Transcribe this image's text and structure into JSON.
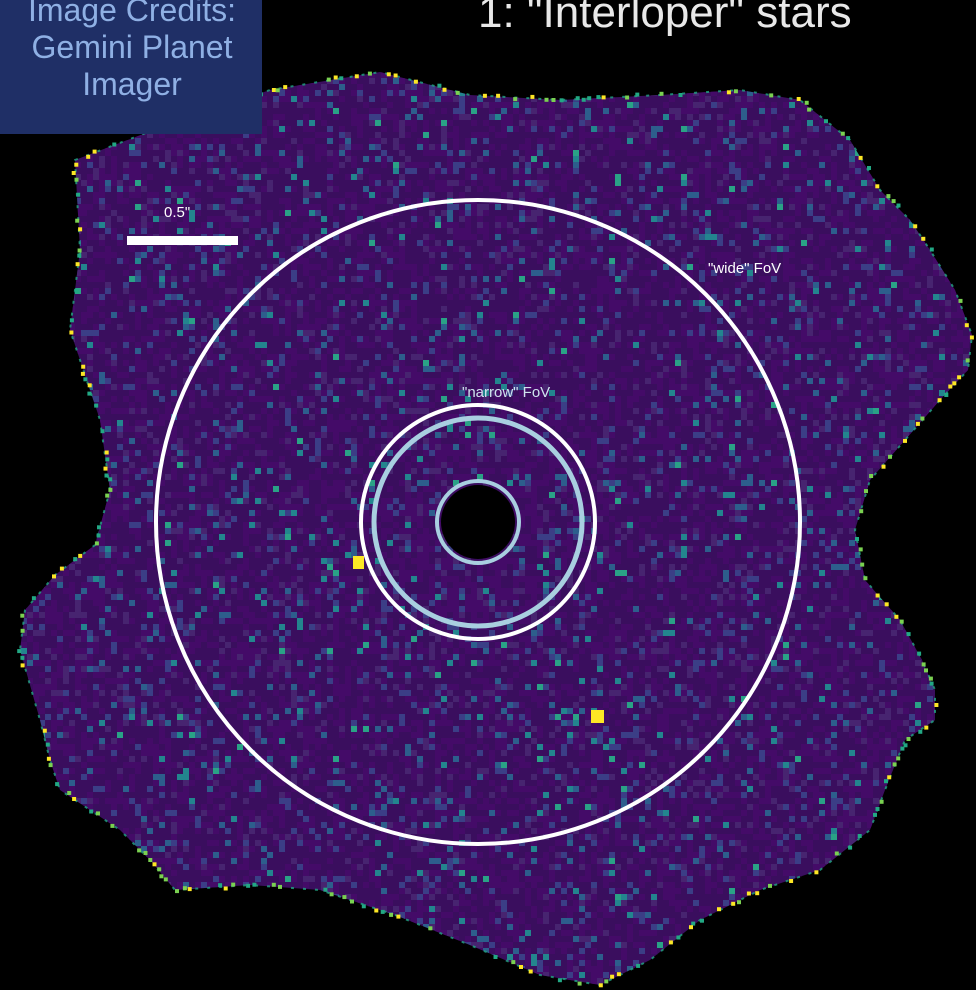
{
  "title": "1: \"Interloper\" stars",
  "credit": "Image Credits:\nGemini Planet\nImager",
  "scale_bar": {
    "label": "0.5\""
  },
  "fov": {
    "wide_label": "\"wide\" FoV",
    "narrow_label": "\"narrow\" FoV"
  },
  "colors": {
    "background": "#000000",
    "field_base": "#3a0e5e",
    "noise": [
      "#440b68",
      "#472470",
      "#3b3e86",
      "#2d5e8c",
      "#23858e",
      "#2aa286"
    ],
    "edge_highlight": [
      "#fde725",
      "#7ad151",
      "#22a884"
    ],
    "wide_ring": "#ffffff",
    "narrow_ring_outer": "#ffffff",
    "narrow_ring_inner": "#a9cfe0",
    "credit_box": "#1f2f66",
    "interloper_star": "#fde725"
  },
  "icons": {
    "interloper_markers": "yellow-dot-marker"
  }
}
